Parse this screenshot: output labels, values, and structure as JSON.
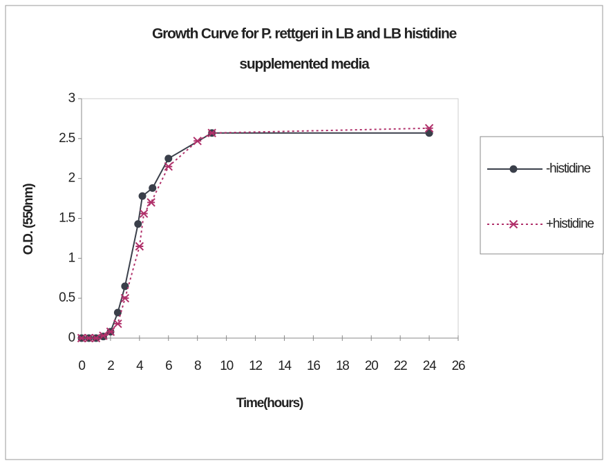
{
  "chart_data": {
    "type": "line",
    "title": [
      "Growth Curve for P. rettgeri in LB and LB histidine",
      "supplemented media"
    ],
    "x_label": "Time(hours)",
    "y_label": "O.D. (550nm)",
    "xlim": [
      0,
      26
    ],
    "xticks": [
      0,
      2,
      4,
      6,
      8,
      10,
      12,
      14,
      16,
      18,
      20,
      22,
      24,
      26
    ],
    "ylim": [
      0,
      3
    ],
    "yticks": [
      0,
      0.5,
      1,
      1.5,
      2,
      2.5,
      3
    ],
    "grid": false,
    "legend": "right",
    "series": [
      {
        "name": "-histidine",
        "color": "#3a3f4a",
        "marker": "circle",
        "dash": "solid",
        "x": [
          0,
          0.5,
          1,
          1.5,
          2,
          2.5,
          3,
          3.9,
          4.2,
          4.9,
          6,
          9,
          24
        ],
        "values": [
          0,
          0,
          0,
          0.02,
          0.08,
          0.32,
          0.65,
          1.43,
          1.78,
          1.88,
          2.25,
          2.57,
          2.57
        ]
      },
      {
        "name": "+histidine",
        "color": "#b0306a",
        "marker": "cross",
        "dash": "dotted",
        "x": [
          0,
          0.5,
          1,
          1.5,
          2,
          2.5,
          3,
          4,
          4.3,
          4.8,
          6,
          8,
          9,
          24
        ],
        "values": [
          0,
          0,
          0,
          0.03,
          0.08,
          0.18,
          0.5,
          1.15,
          1.56,
          1.7,
          2.15,
          2.47,
          2.57,
          2.63
        ]
      }
    ]
  }
}
